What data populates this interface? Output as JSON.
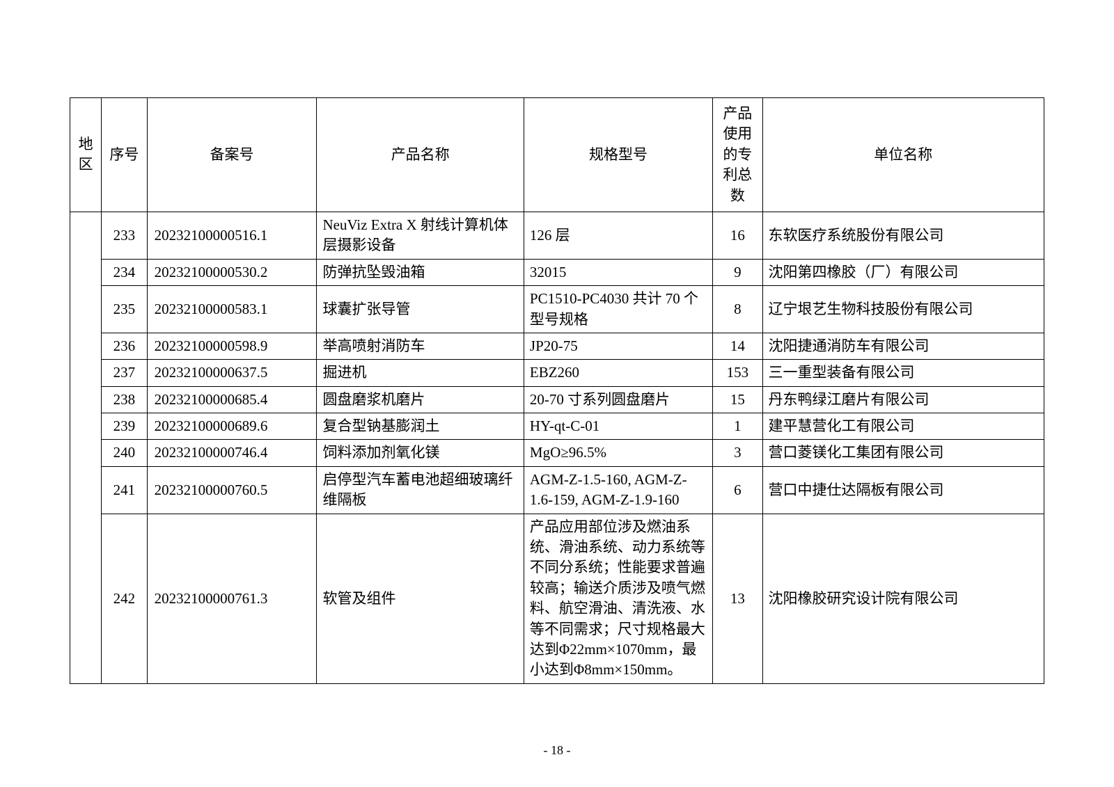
{
  "columns": {
    "region": "地区",
    "seq": "序号",
    "record": "备案号",
    "product": "产品名称",
    "spec": "规格型号",
    "patents": "产品使用的专利总数",
    "company": "单位名称"
  },
  "rows": [
    {
      "seq": "233",
      "record": "20232100000516.1",
      "product": "NeuViz Extra X 射线计算机体层摄影设备",
      "spec": "126 层",
      "patents": "16",
      "company": "东软医疗系统股份有限公司"
    },
    {
      "seq": "234",
      "record": "20232100000530.2",
      "product": "防弹抗坠毁油箱",
      "spec": "32015",
      "patents": "9",
      "company": "沈阳第四橡胶（厂）有限公司"
    },
    {
      "seq": "235",
      "record": "20232100000583.1",
      "product": "球囊扩张导管",
      "spec": "PC1510-PC4030 共计 70 个型号规格",
      "patents": "8",
      "company": "辽宁垠艺生物科技股份有限公司"
    },
    {
      "seq": "236",
      "record": "20232100000598.9",
      "product": "举高喷射消防车",
      "spec": "JP20-75",
      "patents": "14",
      "company": "沈阳捷通消防车有限公司"
    },
    {
      "seq": "237",
      "record": "20232100000637.5",
      "product": "掘进机",
      "spec": "EBZ260",
      "patents": "153",
      "company": "三一重型装备有限公司"
    },
    {
      "seq": "238",
      "record": "20232100000685.4",
      "product": "圆盘磨浆机磨片",
      "spec": "20-70 寸系列圆盘磨片",
      "patents": "15",
      "company": "丹东鸭绿江磨片有限公司"
    },
    {
      "seq": "239",
      "record": "20232100000689.6",
      "product": "复合型钠基膨润土",
      "spec": "HY-qt-C-01",
      "patents": "1",
      "company": "建平慧营化工有限公司"
    },
    {
      "seq": "240",
      "record": "20232100000746.4",
      "product": "饲料添加剂氧化镁",
      "spec": "MgO≥96.5%",
      "patents": "3",
      "company": "营口菱镁化工集团有限公司"
    },
    {
      "seq": "241",
      "record": "20232100000760.5",
      "product": "启停型汽车蓄电池超细玻璃纤维隔板",
      "spec": "AGM-Z-1.5-160, AGM-Z-1.6-159, AGM-Z-1.9-160",
      "patents": "6",
      "company": "营口中捷仕达隔板有限公司"
    },
    {
      "seq": "242",
      "record": "20232100000761.3",
      "product": "软管及组件",
      "spec": "产品应用部位涉及燃油系统、滑油系统、动力系统等不同分系统；性能要求普遍较高；输送介质涉及喷气燃料、航空滑油、清洗液、水等不同需求；尺寸规格最大达到Φ22mm×1070mm，最小达到Φ8mm×150mm。",
      "patents": "13",
      "company": "沈阳橡胶研究设计院有限公司"
    }
  ],
  "page_number": "- 18 -",
  "style": {
    "font_family": "SimSun",
    "font_size_body": 21,
    "font_size_page": 18,
    "border_color": "#000000",
    "background_color": "#ffffff",
    "text_color": "#000000"
  },
  "column_widths": {
    "region": 38,
    "seq": 55,
    "record": 205,
    "product": 250,
    "spec": 228,
    "patents": 60,
    "company": 340
  }
}
